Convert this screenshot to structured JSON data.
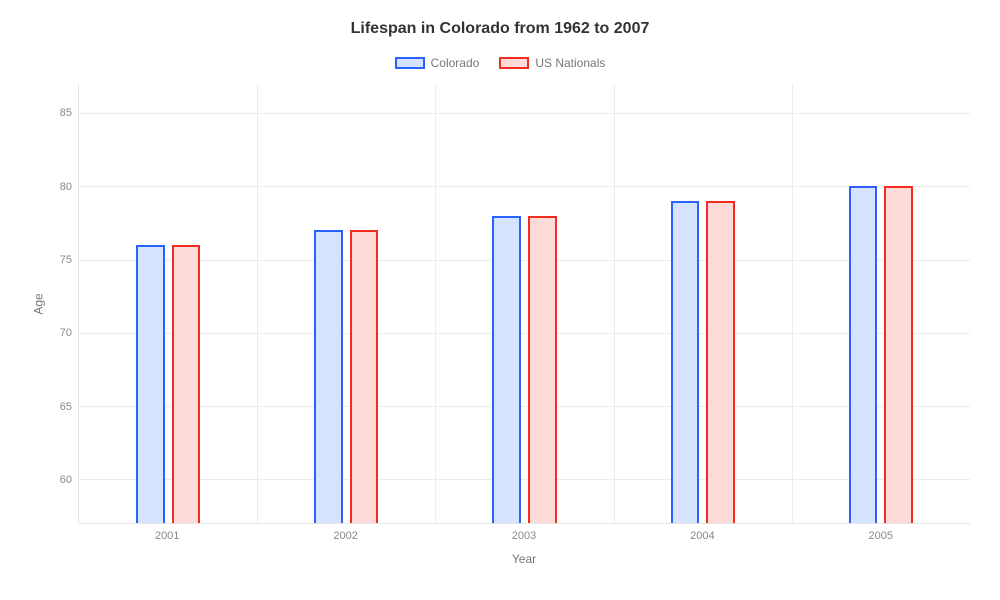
{
  "chart": {
    "type": "bar",
    "title": "Lifespan in Colorado from 1962 to 2007",
    "title_fontsize": 16,
    "title_color": "#333333",
    "background_color": "#ffffff",
    "grid_color": "#ececec",
    "axis_line_color": "#e4e4e4",
    "tick_color": "#888888",
    "label_color": "#777777",
    "xlabel": "Year",
    "ylabel": "Age",
    "label_fontsize": 12,
    "tick_fontsize": 11,
    "ylim": [
      57,
      87
    ],
    "yticks": [
      60,
      65,
      70,
      75,
      80,
      85
    ],
    "categories": [
      "2001",
      "2002",
      "2003",
      "2004",
      "2005"
    ],
    "bar_width_pct": 3.2,
    "bar_gap_pct": 0.8,
    "legend_position": "top-center",
    "series": [
      {
        "name": "Colorado",
        "border_color": "#2962ff",
        "fill_color": "#d6e3ff",
        "border_width": 2,
        "values": [
          76,
          77,
          78,
          79,
          80
        ]
      },
      {
        "name": "US Nationals",
        "border_color": "#f22c1f",
        "fill_color": "#fddbd9",
        "border_width": 2,
        "values": [
          76,
          77,
          78,
          79,
          80
        ]
      }
    ]
  }
}
